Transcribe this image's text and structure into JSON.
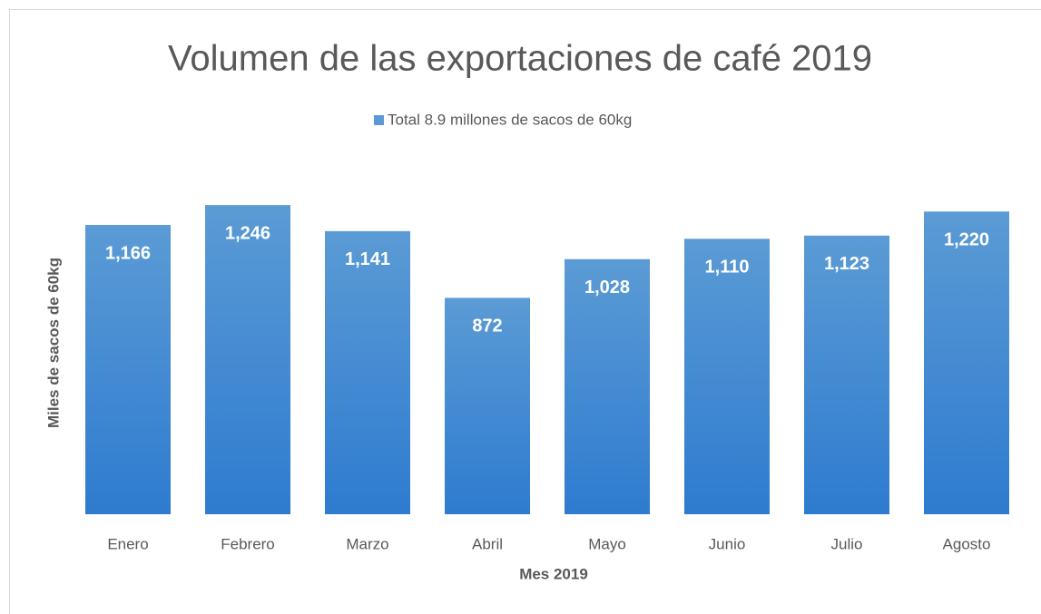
{
  "chart_data": {
    "type": "bar",
    "title": "Volumen de las exportaciones de café 2019",
    "x_label": "Mes 2019",
    "y_label": "Miles de sacos de 60kg",
    "categories": [
      "Enero",
      "Febrero",
      "Marzo",
      "Abril",
      "Mayo",
      "Junio",
      "Julio",
      "Agosto"
    ],
    "series": [
      {
        "name": "Total 8.9 millones de sacos de 60kg",
        "color": "#5b9bd5",
        "values": [
          1166,
          1246,
          1141,
          872,
          1028,
          1110,
          1123,
          1220
        ],
        "value_labels": [
          "1,166",
          "1,246",
          "1,141",
          "872",
          "1,028",
          "1,110",
          "1,123",
          "1,220"
        ]
      }
    ],
    "ylim": [
      0,
      1400
    ],
    "legend": "top"
  }
}
